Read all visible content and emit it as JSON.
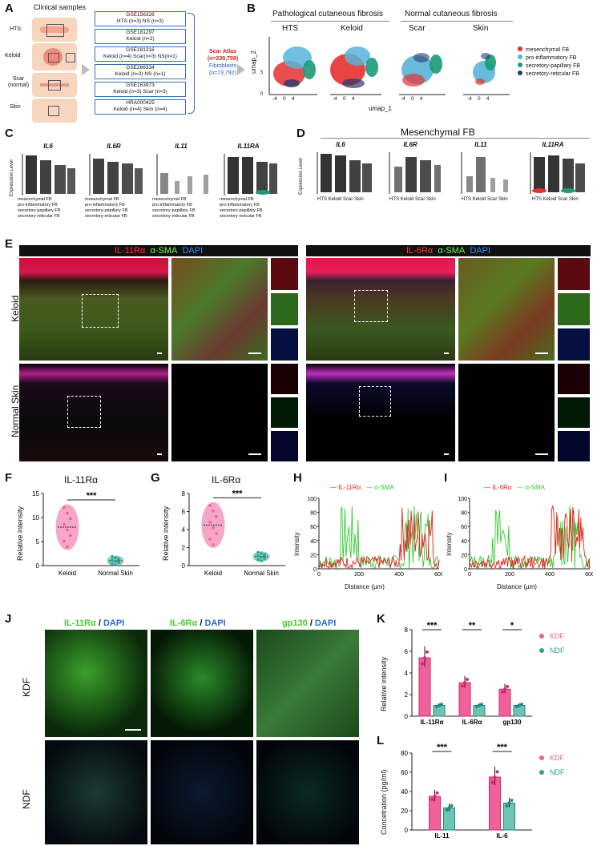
{
  "panels": {
    "A": "A",
    "B": "B",
    "C": "C",
    "D": "D",
    "E": "E",
    "F": "F",
    "G": "G",
    "H": "H",
    "I": "I",
    "J": "J",
    "K": "K",
    "L": "L"
  },
  "panelA": {
    "title": "Clinical samples",
    "rows": [
      {
        "label": "HTS"
      },
      {
        "label": "Keloid"
      },
      {
        "label": "Scar\n(normal)",
        "l1": "Scar",
        "l2": "(normal)"
      },
      {
        "label": "Skin"
      }
    ],
    "datasets": [
      {
        "id": "GSE156326",
        "desc": "HTS (n=3) NS (n=3)"
      },
      {
        "id": "GSE181297",
        "desc": "Keloid (n=2)"
      },
      {
        "id": "GSE181316",
        "desc": "Keloid (n=4) Scar(n=3) NS(n=1)"
      },
      {
        "id": "GSE266334",
        "desc": "Keloid (n=3) NS (n=1)"
      },
      {
        "id": "GSE163973",
        "desc": "Keloid (n=3) Scar (n=3)"
      },
      {
        "id": "HRA000425",
        "desc": "Keloid (n=4) Skin (n=4)"
      }
    ],
    "atlas_l1": "Scar Atlas",
    "atlas_l2": "(n=239,758)",
    "fb_l1": "Fibroblasts",
    "fb_l2": "(n=73,792)"
  },
  "panelB": {
    "group1": "Pathological cutaneous fibrosis",
    "group2": "Normal cutaneous fibrosis",
    "titles": [
      "HTS",
      "Keloid",
      "Scar",
      "Skin"
    ],
    "xlabel": "umap_1",
    "ylabel": "umap_2",
    "ticks_x": [
      "-4",
      "0",
      "4"
    ],
    "ticks_y": [
      "5",
      "0",
      "-5"
    ],
    "legend": [
      {
        "name": "mesenchymal FB",
        "color": "#e53030"
      },
      {
        "name": "pro-inflammatory FB",
        "color": "#58b4d8"
      },
      {
        "name": "secretory-papillary FB",
        "color": "#1a9a78"
      },
      {
        "name": "secretory-reticular FB",
        "color": "#2a3a70"
      }
    ]
  },
  "panelC": {
    "genes": [
      "IL6",
      "IL6R",
      "IL11",
      "IL11RA"
    ],
    "ylabel": "Expression Level",
    "cats": [
      "mesenchymal FB",
      "pro-inflammatory FB",
      "secretory-papillary FB",
      "secretory-reticular FB"
    ]
  },
  "panelD": {
    "title": "Mesenchymal FB",
    "genes": [
      "IL6",
      "IL6R",
      "IL11",
      "IL11RA"
    ],
    "ylabel": "Expression Level",
    "cats": [
      "HTS",
      "Keloid",
      "Scar",
      "Skin"
    ]
  },
  "panelE": {
    "left": {
      "a": "IL-11Rα",
      "b": "α-SMA",
      "c": "DAPI"
    },
    "right": {
      "a": "IL-6Rα",
      "b": "α-SMA",
      "c": "DAPI"
    },
    "rows": [
      "Keloid",
      "Normal Skin"
    ]
  },
  "panelF": {
    "title": "IL-11Rα",
    "ylabel": "Relative intensity",
    "cats": [
      "Keloid",
      "Normal Skin"
    ],
    "sig": "***",
    "ticks": [
      "0",
      "5",
      "10",
      "15"
    ],
    "chart_data": {
      "type": "violin",
      "categories": [
        "Keloid",
        "Normal Skin"
      ],
      "values": [
        8.0,
        1.0
      ],
      "ylim": [
        0,
        15
      ]
    }
  },
  "panelG": {
    "title": "IL-6Rα",
    "ylabel": "Relative intensity",
    "cats": [
      "Keloid",
      "Normal Skin"
    ],
    "sig": "***",
    "ticks": [
      "0",
      "2",
      "4",
      "6",
      "8"
    ],
    "chart_data": {
      "type": "violin",
      "categories": [
        "Keloid",
        "Normal Skin"
      ],
      "values": [
        4.5,
        1.0
      ],
      "ylim": [
        0,
        8
      ]
    }
  },
  "panelH": {
    "legend": [
      {
        "name": "IL-11Rα",
        "color": "#e62020"
      },
      {
        "name": "α-SMA",
        "color": "#33cc33"
      }
    ],
    "ylabel": "Intensity",
    "xlabel": "Distance (µm)",
    "xticks": [
      "0",
      "200",
      "400",
      "600"
    ],
    "yticks": [
      "0",
      "20",
      "40",
      "60",
      "80",
      "100"
    ]
  },
  "panelI": {
    "legend": [
      {
        "name": "IL-6Rα",
        "color": "#e62020"
      },
      {
        "name": "α-SMA",
        "color": "#33cc33"
      }
    ],
    "ylabel": "Intensity",
    "xlabel": "Distance (µm)",
    "xticks": [
      "0",
      "200",
      "400",
      "600"
    ],
    "yticks": [
      "0",
      "20",
      "40",
      "60",
      "80",
      "100"
    ]
  },
  "panelJ": {
    "cols": [
      {
        "a": "IL-11Rα",
        "b": "DAPI"
      },
      {
        "a": "IL-6Rα",
        "b": "DAPI"
      },
      {
        "a": "gp130",
        "b": "DAPI"
      }
    ],
    "rows": [
      "KDF",
      "NDF"
    ]
  },
  "panelK": {
    "ylabel": "Relative intensity",
    "sig": [
      "***",
      "**",
      "*"
    ],
    "legend": [
      {
        "name": "KDF",
        "color": "#f0609a"
      },
      {
        "name": "NDF",
        "color": "#2aa390"
      }
    ],
    "yticks": [
      "0",
      "2",
      "4",
      "6",
      "8"
    ],
    "chart_data": {
      "type": "bar",
      "categories": [
        "IL-11Rα",
        "IL-6Rα",
        "gp130"
      ],
      "series": [
        {
          "name": "KDF",
          "values": [
            5.4,
            3.1,
            2.5
          ]
        },
        {
          "name": "NDF",
          "values": [
            1.0,
            1.0,
            1.0
          ]
        }
      ],
      "ylim": [
        0,
        8
      ]
    }
  },
  "panelL": {
    "ylabel": "Concetration (pg/ml)",
    "sig": [
      "***",
      "***"
    ],
    "legend": [
      {
        "name": "KDF",
        "color": "#f0609a"
      },
      {
        "name": "NDF",
        "color": "#2aa390"
      }
    ],
    "yticks": [
      "0",
      "20",
      "40",
      "60",
      "80"
    ],
    "chart_data": {
      "type": "bar",
      "categories": [
        "IL-11",
        "IL-6"
      ],
      "series": [
        {
          "name": "KDF",
          "values": [
            35,
            55
          ]
        },
        {
          "name": "NDF",
          "values": [
            23,
            28
          ]
        }
      ],
      "ylim": [
        0,
        80
      ]
    }
  }
}
